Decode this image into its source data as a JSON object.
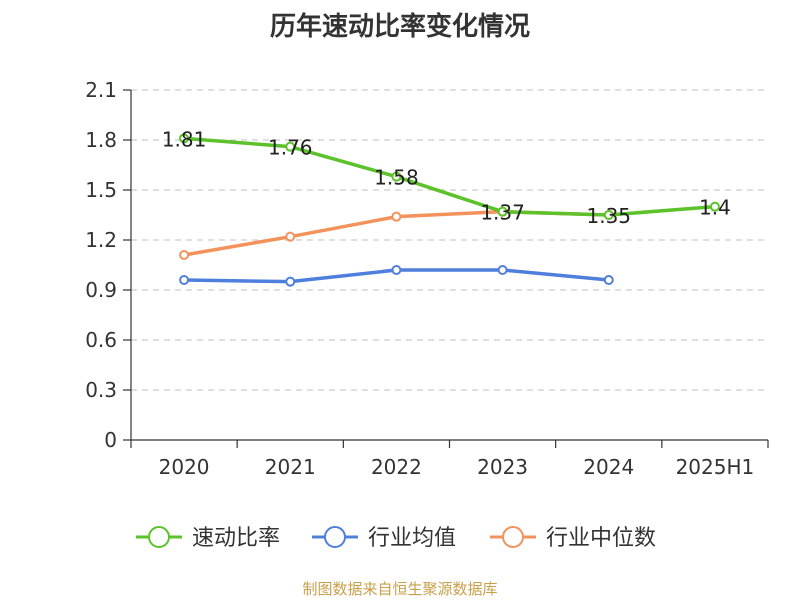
{
  "chart_data": {
    "type": "line",
    "title": "历年速动比率变化情况",
    "categories": [
      "2020",
      "2021",
      "2022",
      "2023",
      "2024",
      "2025H1"
    ],
    "ylim": [
      0,
      2.1
    ],
    "yticks": [
      "0",
      "0.3",
      "0.6",
      "0.9",
      "1.2",
      "1.5",
      "1.8",
      "2.1"
    ],
    "grid": true,
    "legend_position": "bottom",
    "series": [
      {
        "name": "速动比率",
        "color": "#5cc22a",
        "values": [
          1.81,
          1.76,
          1.58,
          1.37,
          1.35,
          1.4
        ],
        "labels": [
          "1.81",
          "1.76",
          "1.58",
          "1.37",
          "1.35",
          "1.4"
        ]
      },
      {
        "name": "行业均值",
        "color": "#4f7fdc",
        "values": [
          0.96,
          0.95,
          1.02,
          1.02,
          0.96,
          null
        ]
      },
      {
        "name": "行业中位数",
        "color": "#f4925c",
        "values": [
          1.11,
          1.22,
          1.34,
          1.37,
          1.35,
          null
        ]
      }
    ]
  },
  "source": "制图数据来自恒生聚源数据库"
}
